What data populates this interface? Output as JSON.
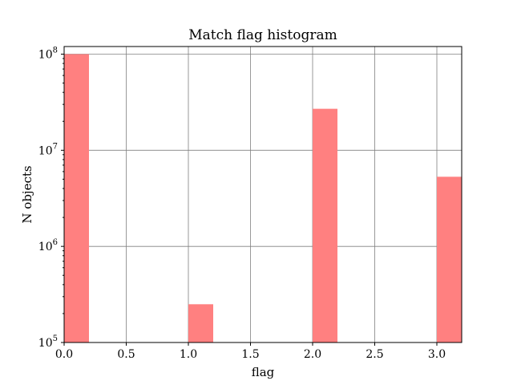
{
  "chart_data": {
    "type": "bar",
    "title": "Match flag histogram",
    "xlabel": "flag",
    "ylabel": "N objects",
    "yscale": "log",
    "ylim": [
      100000,
      120000000
    ],
    "xlim": [
      0.0,
      3.2
    ],
    "grid": true,
    "bar_color": "#ff8080",
    "bins": [
      {
        "x0": 0.0,
        "x1": 0.2,
        "value": 100000000
      },
      {
        "x0": 1.0,
        "x1": 1.2,
        "value": 250000
      },
      {
        "x0": 2.0,
        "x1": 2.2,
        "value": 27000000
      },
      {
        "x0": 3.0,
        "x1": 3.2,
        "value": 5300000
      }
    ],
    "xticks": [
      {
        "value": 0.0,
        "label": "0.0"
      },
      {
        "value": 0.5,
        "label": "0.5"
      },
      {
        "value": 1.0,
        "label": "1.0"
      },
      {
        "value": 1.5,
        "label": "1.5"
      },
      {
        "value": 2.0,
        "label": "2.0"
      },
      {
        "value": 2.5,
        "label": "2.5"
      },
      {
        "value": 3.0,
        "label": "3.0"
      }
    ],
    "yticks": [
      {
        "value": 100000,
        "base": "10",
        "exp": "5"
      },
      {
        "value": 1000000,
        "base": "10",
        "exp": "6"
      },
      {
        "value": 10000000,
        "base": "10",
        "exp": "7"
      },
      {
        "value": 100000000,
        "base": "10",
        "exp": "8"
      }
    ]
  }
}
